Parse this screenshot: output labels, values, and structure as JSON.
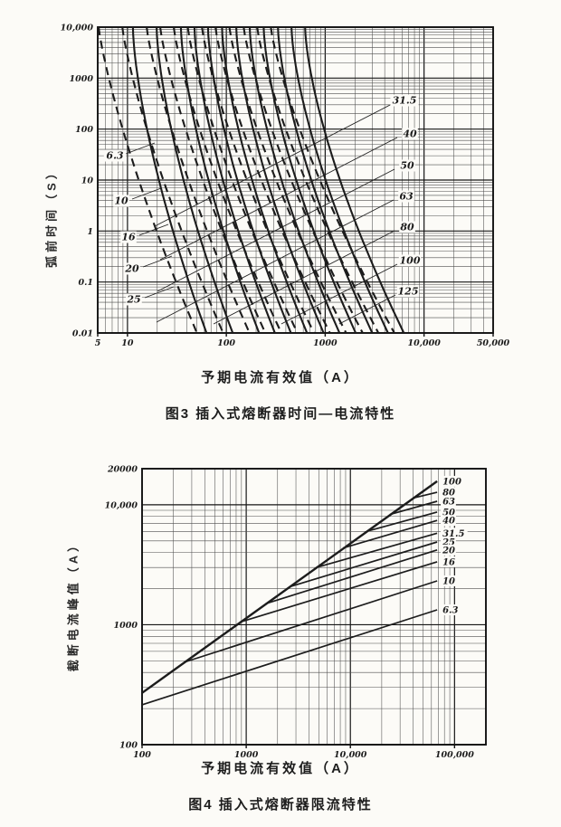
{
  "page": {
    "background": "#fcfbf7",
    "ink": "#222222"
  },
  "chart_data": [
    {
      "id": "figure3",
      "type": "line",
      "title": "图3  插入式熔断器时间—电流特性",
      "xlabel": "予期电流有效值（A）",
      "ylabel": "弧前时间（S）",
      "x_scale": "log",
      "y_scale": "log",
      "xlim": [
        5,
        50000
      ],
      "ylim": [
        0.01,
        10000
      ],
      "grid": "log-log, major and minor lines",
      "x_ticks": [
        {
          "v": 5,
          "label": "5"
        },
        {
          "v": 10,
          "label": "10"
        },
        {
          "v": 100,
          "label": "100"
        },
        {
          "v": 1000,
          "label": "1000"
        },
        {
          "v": 10000,
          "label": "10,000"
        },
        {
          "v": 50000,
          "label": "50,000"
        }
      ],
      "y_ticks": [
        {
          "v": 10000,
          "label": "10,000"
        },
        {
          "v": 1000,
          "label": "1000"
        },
        {
          "v": 100,
          "label": "100"
        },
        {
          "v": 10,
          "label": "10"
        },
        {
          "v": 1,
          "label": "1"
        },
        {
          "v": 0.1,
          "label": "0.1"
        },
        {
          "v": 0.01,
          "label": "0.01"
        }
      ],
      "curve_model": {
        "t_top_s": 10000,
        "t_bottom_s": 0.01,
        "shape_exponent": 1.5,
        "min_curve_current_factor_top": 0.45,
        "min_curve_current_factor_bottom": 0.8,
        "note": "each rating drawn as dashed (minimum pre-arcing) and solid (maximum) curve; current = rating * multiple"
      },
      "series": [
        {
          "rating": "6.3",
          "amps": 6.3,
          "multiple_at_10000s": 1.8,
          "multiple_at_0p01s": 10.0,
          "label_side": "left",
          "label_pos": [
            127,
            172
          ]
        },
        {
          "rating": "10",
          "amps": 10,
          "multiple_at_10000s": 1.97,
          "multiple_at_0p01s": 11.6,
          "label_side": "left",
          "label_pos": [
            134,
            222
          ]
        },
        {
          "rating": "16",
          "amps": 16,
          "multiple_at_10000s": 2.17,
          "multiple_at_0p01s": 13.4,
          "label_side": "left",
          "label_pos": [
            142,
            262
          ]
        },
        {
          "rating": "20",
          "amps": 20,
          "multiple_at_10000s": 2.38,
          "multiple_at_0p01s": 15.5,
          "label_side": "left",
          "label_pos": [
            146,
            297
          ]
        },
        {
          "rating": "25",
          "amps": 25,
          "multiple_at_10000s": 2.61,
          "multiple_at_0p01s": 18.0,
          "label_side": "left",
          "label_pos": [
            148,
            331
          ]
        },
        {
          "rating": "31.5",
          "amps": 31.5,
          "multiple_at_10000s": 2.87,
          "multiple_at_0p01s": 20.8,
          "label_side": "right",
          "label_pos": [
            447,
            111
          ]
        },
        {
          "rating": "40",
          "amps": 40,
          "multiple_at_10000s": 3.15,
          "multiple_at_0p01s": 24.1,
          "label_side": "right",
          "label_pos": [
            453,
            148
          ]
        },
        {
          "rating": "50",
          "amps": 50,
          "multiple_at_10000s": 3.45,
          "multiple_at_0p01s": 27.9,
          "label_side": "right",
          "label_pos": [
            450,
            183
          ]
        },
        {
          "rating": "63",
          "amps": 63,
          "multiple_at_10000s": 3.79,
          "multiple_at_0p01s": 32.3,
          "label_side": "right",
          "label_pos": [
            449,
            217
          ]
        },
        {
          "rating": "80",
          "amps": 80,
          "multiple_at_10000s": 4.16,
          "multiple_at_0p01s": 37.4,
          "label_side": "right",
          "label_pos": [
            450,
            251
          ]
        },
        {
          "rating": "100",
          "amps": 100,
          "multiple_at_10000s": 4.56,
          "multiple_at_0p01s": 43.2,
          "label_side": "right",
          "label_pos": [
            453,
            288
          ]
        },
        {
          "rating": "125",
          "amps": 125,
          "multiple_at_10000s": 5.01,
          "multiple_at_0p01s": 50.0,
          "label_side": "right",
          "label_pos": [
            451,
            322
          ]
        }
      ]
    },
    {
      "id": "figure4",
      "type": "line",
      "title": "图4  插入式熔断器限流特性",
      "xlabel": "予期电流有效值（A）",
      "ylabel": "截断电流峰值（A）",
      "x_scale": "log",
      "y_scale": "log",
      "xlim": [
        100,
        200000
      ],
      "ylim": [
        100,
        20000
      ],
      "grid": "log-log, major and minor lines",
      "x_ticks": [
        {
          "v": 100,
          "label": "100"
        },
        {
          "v": 1000,
          "label": "1000"
        },
        {
          "v": 10000,
          "label": "10,000"
        },
        {
          "v": 100000,
          "label": "100,000"
        }
      ],
      "y_ticks": [
        {
          "v": 20000,
          "label": "20000"
        },
        {
          "v": 10000,
          "label": "10,000"
        },
        {
          "v": 1000,
          "label": "1000"
        },
        {
          "v": 100,
          "label": "100"
        }
      ],
      "series": [
        {
          "rating": "100",
          "points": [
            [
              100,
              270
            ],
            [
              68000,
              15700
            ]
          ]
        },
        {
          "rating": "80",
          "points": [
            [
              40000,
              11400
            ],
            [
              68000,
              12700
            ]
          ]
        },
        {
          "rating": "63",
          "points": [
            [
              24000,
              8300
            ],
            [
              68000,
              10700
            ]
          ]
        },
        {
          "rating": "50",
          "points": [
            [
              14300,
              6000
            ],
            [
              68000,
              8700
            ]
          ]
        },
        {
          "rating": "40",
          "points": [
            [
              8500,
              4360
            ],
            [
              68000,
              7400
            ]
          ]
        },
        {
          "rating": "31.5",
          "points": [
            [
              4700,
              3000
            ],
            [
              68000,
              5800
            ]
          ]
        },
        {
          "rating": "25",
          "points": [
            [
              2600,
              2070
            ],
            [
              68000,
              4900
            ]
          ]
        },
        {
          "rating": "20",
          "points": [
            [
              1550,
              1500
            ],
            [
              68000,
              4200
            ]
          ]
        },
        {
          "rating": "16",
          "points": [
            [
              870,
              1050
            ],
            [
              68000,
              3350
            ]
          ]
        },
        {
          "rating": "10",
          "points": [
            [
              260,
              490
            ],
            [
              68000,
              2320
            ]
          ]
        },
        {
          "rating": "6.3",
          "points": [
            [
              100,
              215
            ],
            [
              68000,
              1330
            ]
          ]
        }
      ]
    }
  ]
}
